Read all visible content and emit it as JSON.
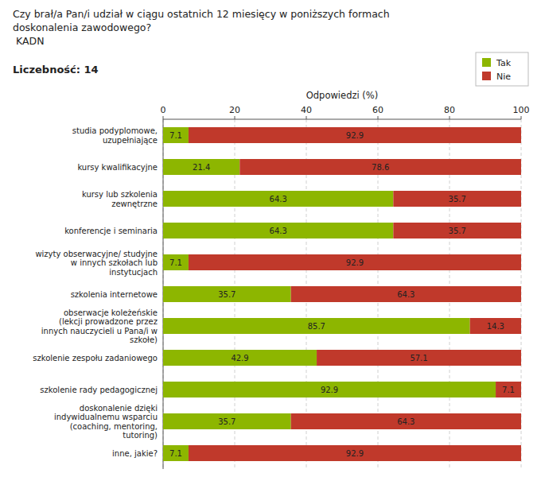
{
  "chart_data": {
    "type": "bar",
    "orientation": "horizontal",
    "stacked": true,
    "title": "Czy brał/a Pan/i udział w ciągu ostatnich 12 miesięcy w poniższych formach\ndoskonalenia zawodowego?\n KADN",
    "subtitle": "Liczebność: 14",
    "x_label": "Odpowiedzi (%)",
    "categories": [
      "studia podyplomowe,\nuzupełniające",
      "kursy kwalifikacyjne",
      "kursy lub szkolenia\nzewnętrzne",
      "konferencje i seminaria",
      "wizyty obserwacyjne/ studyjne\nw innych szkołach lub\ninstytucjach",
      "szkolenia internetowe",
      "obserwacje koleżeńskie\n(lekcji prowadzone przez\ninnych nauczycieli u Pana/i w\nszkołe)",
      "szkolenie zespołu zadaniowego",
      "szkolenie rady pedagogicznej",
      "doskonalenie dzięki\nindywidualnemu wsparciu\n(coaching, mentoring,\ntutoring)",
      "inne, jakie?"
    ],
    "series": [
      {
        "name": "Tak",
        "color": "#8db600",
        "values": [
          7.1,
          21.4,
          64.3,
          64.3,
          7.1,
          35.7,
          85.7,
          42.9,
          92.9,
          35.7,
          7.1
        ]
      },
      {
        "name": "Nie",
        "color": "#c0392b",
        "values": [
          92.9,
          78.6,
          35.7,
          35.7,
          92.9,
          64.3,
          14.3,
          57.1,
          7.1,
          64.3,
          92.9
        ]
      }
    ],
    "xlim": [
      0,
      100
    ],
    "xticks": [
      0,
      20,
      40,
      60,
      80,
      100
    ],
    "grid": true,
    "legend": "upper right",
    "data_labels": true
  }
}
